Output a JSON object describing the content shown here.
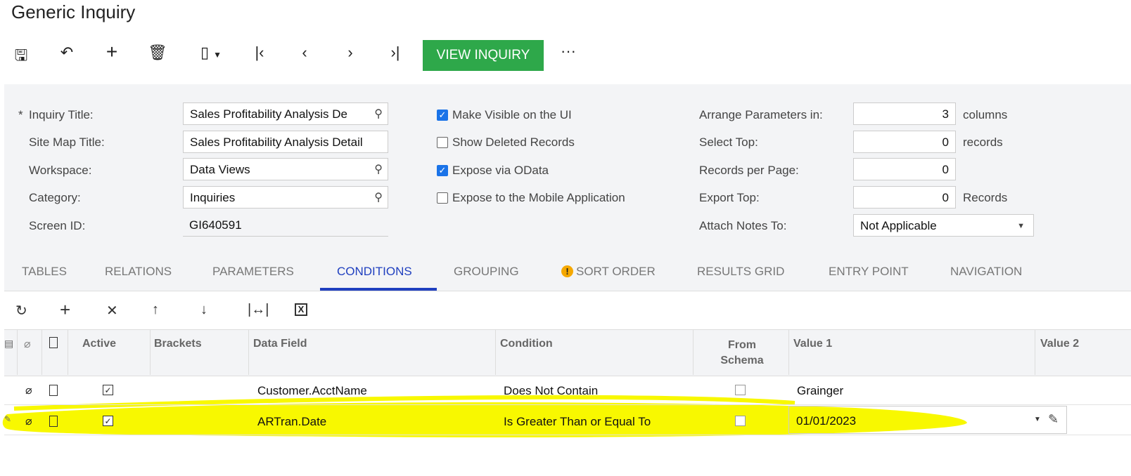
{
  "window": {
    "title": "Generic Inquiry"
  },
  "toolbar": {
    "icons": [
      "save-icon",
      "undo-icon",
      "add-icon",
      "delete-icon",
      "clipboard-icon",
      "first-icon",
      "previous-icon",
      "next-icon",
      "last-icon",
      "more-icon"
    ],
    "view_inquiry": "VIEW INQUIRY",
    "more": "···",
    "accent": "#2ea84a"
  },
  "form": {
    "inquiry_title": {
      "label": "Inquiry Title:",
      "required": "*",
      "value": "Sales Profitability Analysis De"
    },
    "site_map_title": {
      "label": "Site Map Title:",
      "value": "Sales Profitability Analysis Detail"
    },
    "workspace": {
      "label": "Workspace:",
      "value": "Data Views"
    },
    "category": {
      "label": "Category:",
      "value": "Inquiries"
    },
    "screen_id": {
      "label": "Screen ID:",
      "value": "GI640591"
    },
    "checks": [
      {
        "label": "Make Visible on the UI",
        "checked": true
      },
      {
        "label": "Show Deleted Records",
        "checked": false
      },
      {
        "label": "Expose via OData",
        "checked": true
      },
      {
        "label": "Expose to the Mobile Application",
        "checked": false
      }
    ],
    "arrange": {
      "label": "Arrange Parameters in:",
      "value": "3",
      "suffix": "columns"
    },
    "select_top": {
      "label": "Select Top:",
      "value": "0",
      "suffix": "records"
    },
    "records_per_page": {
      "label": "Records per Page:",
      "value": "0"
    },
    "export_top": {
      "label": "Export Top:",
      "value": "0",
      "suffix": "Records"
    },
    "attach_notes": {
      "label": "Attach Notes To:",
      "value": "Not Applicable"
    }
  },
  "tabs": [
    "TABLES",
    "RELATIONS",
    "PARAMETERS",
    "CONDITIONS",
    "GROUPING",
    "SORT ORDER",
    "RESULTS GRID",
    "ENTRY POINT",
    "NAVIGATION"
  ],
  "active_tab": "CONDITIONS",
  "grid": {
    "toolbar_icons": [
      "refresh-icon",
      "add-icon",
      "delete-icon",
      "move-up-icon",
      "move-down-icon",
      "fit-width-icon",
      "excel-export-icon"
    ],
    "columns": [
      "Active",
      "Brackets",
      "Data Field",
      "Condition",
      "From Schema",
      "Value 1",
      "Value 2"
    ],
    "rows": [
      {
        "active": true,
        "brackets": "",
        "data_field": "Customer.AcctName",
        "condition": "Does Not Contain",
        "from_schema": false,
        "value1": "Grainger",
        "value2": ""
      },
      {
        "active": true,
        "brackets": "",
        "data_field": "ARTran.Date",
        "condition": "Is Greater Than or Equal To",
        "from_schema": false,
        "value1": "01/01/2023",
        "value2": ""
      }
    ]
  },
  "highlight_color": "#f8f800"
}
